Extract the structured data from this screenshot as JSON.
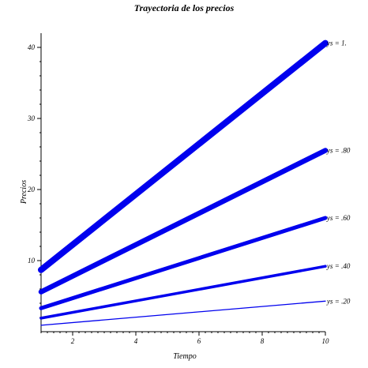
{
  "chart_data": {
    "type": "line",
    "title": "Trayectoria de los precios",
    "xlabel": "Tiempo",
    "ylabel": "Precios",
    "xlim": [
      1,
      10
    ],
    "ylim": [
      0,
      42
    ],
    "x_ticks": [
      2,
      4,
      6,
      8,
      10
    ],
    "y_ticks": [
      10,
      20,
      30,
      40
    ],
    "grid": false,
    "line_color": "#0000ee",
    "series": [
      {
        "name": "ys = 1.",
        "x": [
          1,
          10
        ],
        "y": [
          8.7,
          40.6
        ]
      },
      {
        "name": "ys = .80",
        "x": [
          1,
          10
        ],
        "y": [
          5.6,
          25.5
        ]
      },
      {
        "name": "ys = .60",
        "x": [
          1,
          10
        ],
        "y": [
          3.3,
          16.0
        ]
      },
      {
        "name": "ys = .40",
        "x": [
          1,
          10
        ],
        "y": [
          1.9,
          9.2
        ]
      },
      {
        "name": "ys = .20",
        "x": [
          1,
          10
        ],
        "y": [
          0.9,
          4.3
        ]
      }
    ]
  }
}
